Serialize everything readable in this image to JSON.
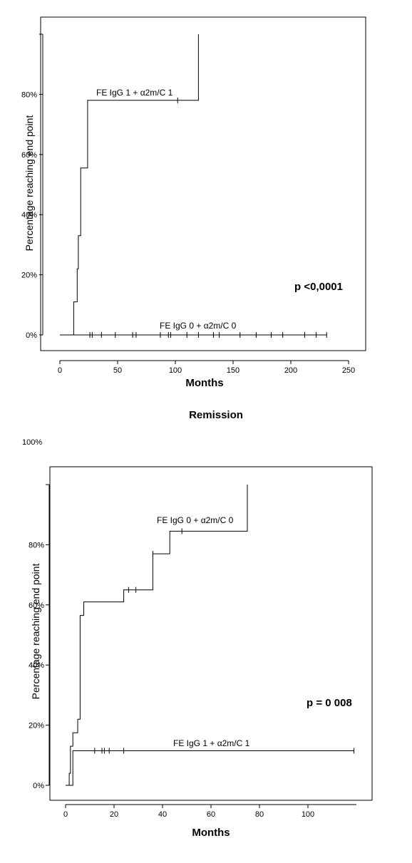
{
  "chart_data": [
    {
      "type": "line",
      "subtype": "kaplan-meier",
      "title": "",
      "xlabel": "Months",
      "ylabel": "Percentage reaching end point",
      "xlim": [
        0,
        250
      ],
      "ylim": [
        0,
        100
      ],
      "xticks": [
        "0",
        "50",
        "100",
        "150",
        "200",
        "250"
      ],
      "yticks": [
        "0%",
        "20%",
        "40%",
        "60%",
        "80%"
      ],
      "annotation": "p <0,0001",
      "series": [
        {
          "name": "FE IgG 1 + α2m/C 1",
          "steps": [
            [
              0,
              0
            ],
            [
              12,
              0
            ],
            [
              12,
              11
            ],
            [
              15,
              11
            ],
            [
              15,
              22
            ],
            [
              16,
              22
            ],
            [
              16,
              33
            ],
            [
              18,
              33
            ],
            [
              18,
              55.5
            ],
            [
              24,
              55.5
            ],
            [
              24,
              78
            ],
            [
              120,
              78
            ],
            [
              120,
              100
            ]
          ],
          "censored": [
            [
              102,
              78
            ]
          ]
        },
        {
          "name": "FE IgG 0 + α2m/C 0",
          "steps": [
            [
              0,
              0
            ],
            [
              231,
              0
            ]
          ],
          "censored": [
            [
              26,
              0
            ],
            [
              28,
              0
            ],
            [
              36,
              0
            ],
            [
              48,
              0
            ],
            [
              63,
              0
            ],
            [
              66,
              0
            ],
            [
              87,
              0
            ],
            [
              94,
              0
            ],
            [
              96,
              0
            ],
            [
              110,
              0
            ],
            [
              120,
              0
            ],
            [
              133,
              0
            ],
            [
              138,
              0
            ],
            [
              156,
              0
            ],
            [
              170,
              0
            ],
            [
              183,
              0
            ],
            [
              193,
              0
            ],
            [
              212,
              0
            ],
            [
              222,
              0
            ],
            [
              231,
              0
            ]
          ]
        }
      ]
    },
    {
      "type": "line",
      "subtype": "kaplan-meier",
      "title": "Remission",
      "xlabel": "Months",
      "ylabel": "Percentage reaching end point",
      "xlim": [
        0,
        120
      ],
      "ylim": [
        0,
        100
      ],
      "xticks": [
        "0",
        "20",
        "40",
        "60",
        "80",
        "100"
      ],
      "yticks": [
        "0%",
        "20%",
        "40%",
        "60%",
        "80%"
      ],
      "top_label": "100%",
      "annotation": "p = 0 008",
      "series": [
        {
          "name": "FE IgG 0 + α2m/C 0",
          "steps": [
            [
              0,
              0
            ],
            [
              1.5,
              0
            ],
            [
              1.5,
              4
            ],
            [
              2,
              4
            ],
            [
              2,
              13
            ],
            [
              3,
              13
            ],
            [
              3,
              17.5
            ],
            [
              5,
              17.5
            ],
            [
              5,
              22
            ],
            [
              6,
              22
            ],
            [
              6,
              56.5
            ],
            [
              7.5,
              56.5
            ],
            [
              7.5,
              61
            ],
            [
              24,
              61
            ],
            [
              24,
              65
            ],
            [
              36,
              65
            ],
            [
              36,
              77
            ],
            [
              43,
              77
            ],
            [
              43,
              84.5
            ],
            [
              75,
              84.5
            ],
            [
              75,
              100
            ]
          ],
          "censored": [
            [
              26,
              65
            ],
            [
              29,
              65
            ],
            [
              36,
              77
            ],
            [
              48,
              84.5
            ]
          ]
        },
        {
          "name": "FE IgG 1 + α2m/C 1",
          "steps": [
            [
              0,
              0
            ],
            [
              3,
              0
            ],
            [
              3,
              11.5
            ],
            [
              119,
              11.5
            ]
          ],
          "censored": [
            [
              12,
              11.5
            ],
            [
              15,
              11.5
            ],
            [
              16,
              11.5
            ],
            [
              18,
              11.5
            ],
            [
              24,
              11.5
            ],
            [
              119,
              11.5
            ]
          ]
        }
      ]
    }
  ]
}
